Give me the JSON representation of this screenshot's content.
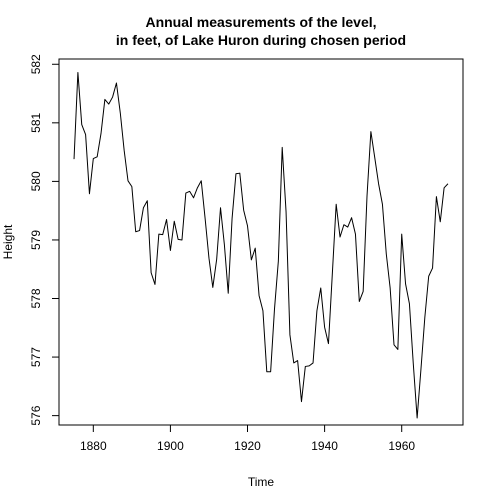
{
  "chart_data": {
    "type": "line",
    "title_lines": [
      "Annual measurements of the level,",
      "in feet, of Lake Huron during chosen period"
    ],
    "xlabel": "Time",
    "ylabel": "Height",
    "xlim": [
      1871.1,
      1975.9
    ],
    "ylim": [
      575.84,
      582.09
    ],
    "x_ticks": [
      1880,
      1900,
      1920,
      1940,
      1960
    ],
    "y_ticks": [
      576,
      577,
      578,
      579,
      580,
      581,
      582
    ],
    "x_start": 1875,
    "line_color": "#000000",
    "grid": false,
    "series": [
      {
        "values": [
          580.38,
          581.86,
          580.97,
          580.8,
          579.79,
          580.39,
          580.42,
          580.82,
          581.4,
          581.32,
          581.44,
          581.68,
          581.17,
          580.53,
          580.01,
          579.91,
          579.14,
          579.16,
          579.55,
          579.67,
          578.44,
          578.24,
          579.1,
          579.09,
          579.35,
          578.82,
          579.32,
          579.01,
          579.0,
          579.8,
          579.83,
          579.72,
          579.89,
          580.01,
          579.37,
          578.69,
          578.19,
          578.67,
          579.55,
          578.92,
          578.09,
          579.37,
          580.13,
          580.14,
          579.51,
          579.24,
          578.66,
          578.86,
          578.05,
          577.79,
          576.75,
          576.75,
          577.82,
          578.64,
          580.58,
          579.48,
          577.38,
          576.9,
          576.94,
          576.24,
          576.84,
          576.85,
          576.9,
          577.79,
          578.18,
          577.51,
          577.23,
          578.42,
          579.61,
          579.05,
          579.26,
          579.22,
          579.38,
          579.1,
          577.95,
          578.12,
          579.75,
          580.85,
          580.41,
          579.96,
          579.61,
          578.76,
          578.18,
          577.21,
          577.13,
          579.1,
          578.25,
          577.91,
          576.89,
          575.96,
          576.8,
          577.68,
          578.38,
          578.52,
          579.74,
          579.31,
          579.89,
          579.96
        ]
      }
    ]
  }
}
